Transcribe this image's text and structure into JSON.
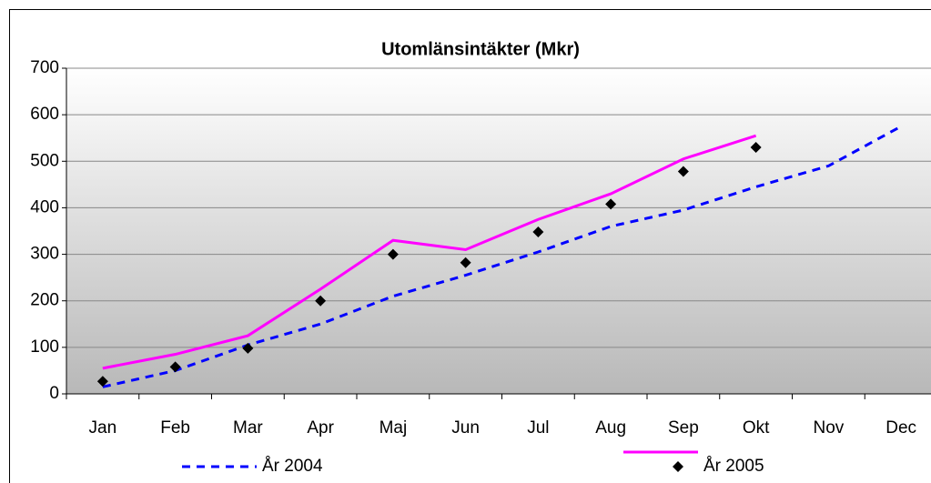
{
  "chart_data": {
    "type": "line",
    "title": "Utomlänsintäkter (Mkr)",
    "categories": [
      "Jan",
      "Feb",
      "Mar",
      "Apr",
      "Maj",
      "Jun",
      "Jul",
      "Aug",
      "Sep",
      "Okt",
      "Nov",
      "Dec"
    ],
    "series": [
      {
        "name": "År 2004",
        "color": "#0000ff",
        "dash": true,
        "marker": "none",
        "values": [
          15,
          50,
          105,
          150,
          210,
          255,
          305,
          360,
          395,
          445,
          490,
          575
        ]
      },
      {
        "color": "#ff00ff",
        "dash": false,
        "marker": "none",
        "values": [
          55,
          85,
          125,
          225,
          330,
          310,
          375,
          430,
          505,
          555,
          null,
          null
        ]
      },
      {
        "name": "År 2005",
        "color": "#000000",
        "dash": false,
        "marker": "diamond",
        "values": [
          27,
          58,
          98,
          200,
          300,
          282,
          348,
          408,
          478,
          530,
          null,
          null
        ]
      }
    ],
    "ylim": [
      0,
      700
    ],
    "yticks": [
      0,
      100,
      200,
      300,
      400,
      500,
      600,
      700
    ],
    "grid": true
  }
}
